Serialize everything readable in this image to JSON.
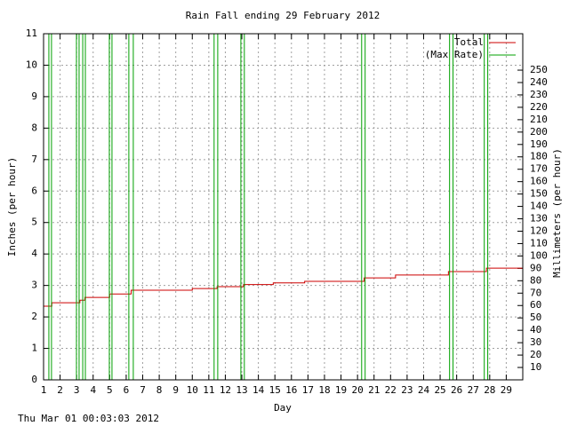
{
  "chart_data": {
    "type": "line",
    "title": "Rain Fall ending 29 February 2012",
    "x_label": "Day",
    "y_label": "Inches (per hour)",
    "y2_label": "Millimeters (per hour)",
    "timestamp": "Thu Mar 01 00:03:03 2012",
    "xlim": [
      1,
      30
    ],
    "xticks": [
      1,
      2,
      3,
      4,
      5,
      6,
      7,
      8,
      9,
      10,
      11,
      12,
      13,
      14,
      15,
      16,
      17,
      18,
      19,
      20,
      21,
      22,
      23,
      24,
      25,
      26,
      27,
      28,
      29
    ],
    "ylim": [
      0,
      11
    ],
    "yticks": [
      0,
      1,
      2,
      3,
      4,
      5,
      6,
      7,
      8,
      9,
      10,
      11
    ],
    "y2lim": [
      0,
      279.4
    ],
    "y2ticks": [
      10,
      20,
      30,
      40,
      50,
      60,
      70,
      80,
      90,
      100,
      110,
      120,
      130,
      140,
      150,
      160,
      170,
      180,
      190,
      200,
      210,
      220,
      230,
      240,
      250
    ],
    "grid": true,
    "legend": "top-right",
    "series": [
      {
        "name": "Total",
        "color": "#cc0000",
        "x": [
          1,
          1.5,
          1.5,
          3.2,
          3.2,
          3.5,
          3.5,
          5,
          5,
          6.3,
          6.3,
          10,
          10,
          11.5,
          11.5,
          13.1,
          13.1,
          14.9,
          14.9,
          16.8,
          16.8,
          20.4,
          20.4,
          22.3,
          22.3,
          25.5,
          25.5,
          27.8,
          27.8,
          30
        ],
        "values": [
          2.34,
          2.34,
          2.45,
          2.45,
          2.53,
          2.53,
          2.62,
          2.62,
          2.73,
          2.73,
          2.85,
          2.85,
          2.9,
          2.9,
          2.96,
          2.96,
          3.03,
          3.03,
          3.08,
          3.08,
          3.13,
          3.13,
          3.24,
          3.24,
          3.33,
          3.33,
          3.44,
          3.44,
          3.55,
          3.55
        ]
      },
      {
        "name": "(Max Rate)",
        "color": "#00a000",
        "x": [
          1,
          1.32,
          1.32,
          1.48,
          1.48,
          2.99,
          2.99,
          3.15,
          3.15,
          3.37,
          3.37,
          3.53,
          3.53,
          4.98,
          4.98,
          5.14,
          5.14,
          6.16,
          6.16,
          6.43,
          6.43,
          11.32,
          11.32,
          11.54,
          11.54,
          12.94,
          12.94,
          13.15,
          13.15,
          20.25,
          20.25,
          20.46,
          20.46,
          25.57,
          25.57,
          25.78,
          25.78,
          27.67,
          27.67,
          27.88,
          27.88,
          30
        ],
        "values": [
          0,
          0,
          11,
          11,
          0,
          0,
          11,
          11,
          0,
          0,
          11,
          11,
          0,
          0,
          11,
          11,
          0,
          0,
          11,
          11,
          0,
          0,
          11,
          11,
          0,
          0,
          11,
          11,
          0,
          0,
          11,
          11,
          0,
          0,
          11,
          11,
          0,
          0,
          11,
          11,
          0,
          0
        ]
      }
    ]
  }
}
